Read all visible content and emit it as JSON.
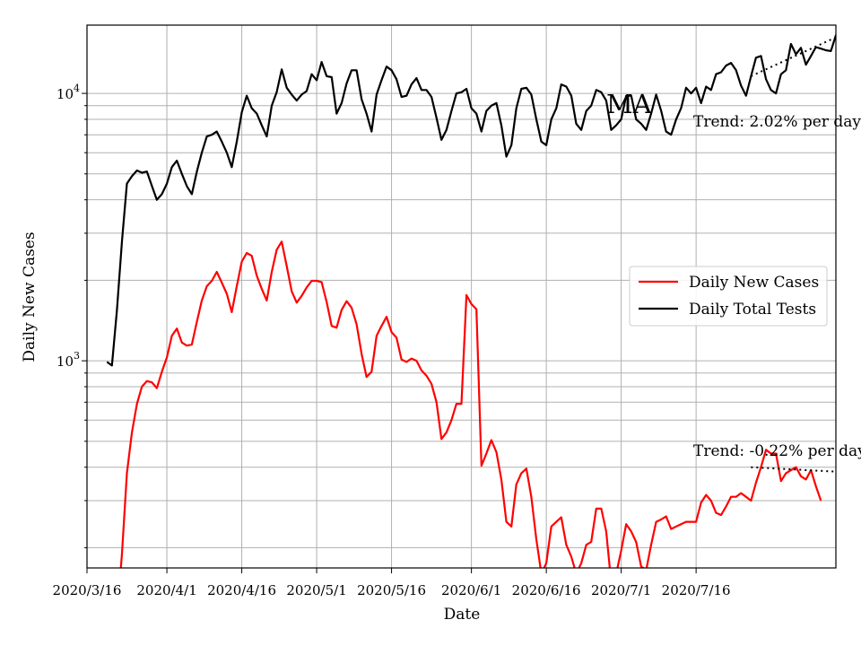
{
  "chart_data": {
    "type": "line",
    "xlabel": "Date",
    "ylabel": "Daily New Cases",
    "y_scale": "log",
    "ylim": [
      168,
      18000
    ],
    "xlim": [
      "2020-03-16",
      "2020-08-13"
    ],
    "x_ticks": [
      "2020/3/16",
      "2020/4/1",
      "2020/4/16",
      "2020/5/1",
      "2020/5/16",
      "2020/6/1",
      "2020/6/16",
      "2020/7/1",
      "2020/7/16"
    ],
    "x_tick_dates": [
      "2020-03-16",
      "2020-04-01",
      "2020-04-16",
      "2020-05-01",
      "2020-05-16",
      "2020-06-01",
      "2020-06-16",
      "2020-07-01",
      "2020-07-16"
    ],
    "y_tick_labels": [
      {
        "base": "10",
        "exp": "3",
        "value": 1000
      },
      {
        "base": "10",
        "exp": "4",
        "value": 10000
      }
    ],
    "grid": true,
    "legend_position": "center-right",
    "annotations": [
      {
        "text": "MA",
        "style": "large"
      },
      {
        "text": "Trend: 2.02% per day",
        "series": "Daily Total Tests"
      },
      {
        "text": "Trend: -0.22% per day",
        "series": "Daily New Cases"
      }
    ],
    "series": [
      {
        "name": "Daily New Cases",
        "color": "#ff0000",
        "start_date": "2020-03-22",
        "values": [
          110,
          190,
          380,
          540,
          690,
          800,
          840,
          830,
          790,
          910,
          1030,
          1240,
          1320,
          1170,
          1140,
          1150,
          1400,
          1680,
          1900,
          1990,
          2150,
          1960,
          1780,
          1520,
          1900,
          2350,
          2530,
          2470,
          2080,
          1860,
          1680,
          2150,
          2600,
          2790,
          2260,
          1820,
          1650,
          1750,
          1880,
          1990,
          1990,
          1970,
          1660,
          1350,
          1330,
          1550,
          1670,
          1580,
          1370,
          1060,
          870,
          910,
          1240,
          1350,
          1460,
          1280,
          1220,
          1010,
          990,
          1020,
          1000,
          920,
          880,
          820,
          700,
          510,
          540,
          600,
          690,
          690,
          1760,
          1630,
          1560,
          405,
          450,
          505,
          455,
          360,
          250,
          240,
          345,
          380,
          395,
          310,
          215,
          160,
          175,
          240,
          250,
          260,
          205,
          185,
          160,
          175,
          205,
          210,
          280,
          280,
          230,
          148,
          160,
          195,
          245,
          230,
          210,
          170,
          165,
          205,
          250,
          255,
          262,
          235,
          240,
          245,
          250,
          250,
          250,
          295,
          315,
          300,
          270,
          265,
          285,
          310,
          310,
          320,
          310,
          300,
          350,
          400,
          465,
          450,
          450,
          355,
          380,
          390,
          400,
          370,
          360,
          390,
          340,
          300
        ]
      },
      {
        "name": "Daily Total Tests",
        "color": "#000000",
        "start_date": "2020-03-20",
        "values": [
          990,
          960,
          1550,
          2800,
          4600,
          4900,
          5150,
          5050,
          5100,
          4500,
          4000,
          4200,
          4600,
          5300,
          5600,
          5000,
          4500,
          4200,
          5100,
          6000,
          6900,
          7000,
          7200,
          6600,
          6000,
          5300,
          6600,
          8500,
          9800,
          8800,
          8400,
          7600,
          6900,
          9000,
          10100,
          12300,
          10500,
          9900,
          9400,
          9900,
          10200,
          11800,
          11200,
          13100,
          11600,
          11500,
          8400,
          9200,
          10900,
          12200,
          12200,
          9500,
          8400,
          7200,
          9900,
          11200,
          12600,
          12200,
          11300,
          9700,
          9800,
          10800,
          11400,
          10300,
          10300,
          9700,
          8100,
          6700,
          7300,
          8600,
          10000,
          10100,
          10400,
          8800,
          8400,
          7200,
          8600,
          9000,
          9200,
          7600,
          5800,
          6400,
          8800,
          10400,
          10500,
          9900,
          8000,
          6600,
          6400,
          8000,
          8800,
          10800,
          10600,
          9800,
          7700,
          7300,
          8600,
          9000,
          10300,
          10100,
          9400,
          7300,
          7600,
          8000,
          9800,
          9800,
          8000,
          7700,
          7300,
          8400,
          9900,
          8600,
          7200,
          7000,
          8000,
          8800,
          10500,
          10000,
          10500,
          9200,
          10600,
          10300,
          11800,
          12000,
          12700,
          13000,
          12200,
          10700,
          9800,
          11600,
          13600,
          13800,
          11300,
          10300,
          10000,
          11800,
          12200,
          15300,
          14000,
          14800,
          12800,
          13800,
          14900,
          14700,
          14500,
          14400,
          16500,
          15100,
          14100
        ]
      }
    ],
    "trend_lines": [
      {
        "series": "Daily Total Tests",
        "style": "dotted",
        "x": [
          "2020-07-27",
          "2020-08-13"
        ],
        "y": [
          11600,
          16200
        ]
      },
      {
        "series": "Daily New Cases",
        "style": "dotted",
        "x": [
          "2020-07-27",
          "2020-08-13"
        ],
        "y": [
          400,
          385
        ]
      }
    ]
  }
}
